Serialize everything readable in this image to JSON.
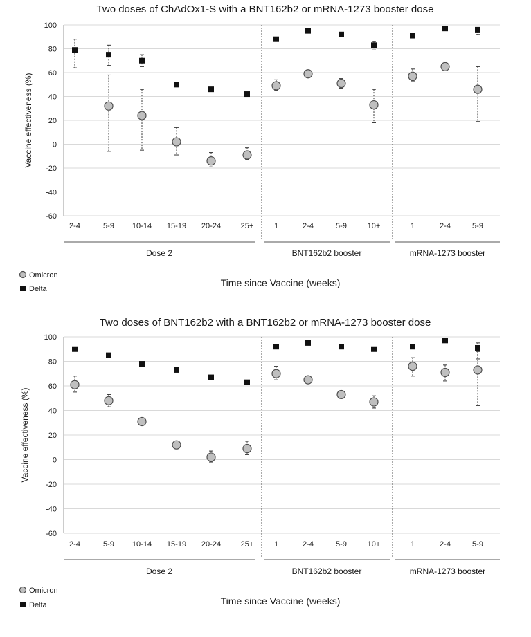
{
  "colors": {
    "omicron_fill": "#bfbfbf",
    "omicron_stroke": "#4d4d4d",
    "delta_fill": "#111111"
  },
  "chart_data": [
    {
      "type": "scatter",
      "title": "Two doses of ChAdOx1-S with a BNT162b2 or mRNA-1273 booster dose",
      "ylabel": "Vaccine effectiveness (%)",
      "xlabel": "Time since Vaccine (weeks)",
      "ylim": [
        -60,
        100
      ],
      "yticks": [
        "-60",
        "-40",
        "-20",
        "0",
        "20",
        "40",
        "60",
        "80",
        "100"
      ],
      "categories": [
        "2-4",
        "5-9",
        "10-14",
        "15-19",
        "20-24",
        "25+",
        "1",
        "2-4",
        "5-9",
        "10+",
        "1",
        "2-4",
        "5-9"
      ],
      "groups": [
        {
          "label": "Dose 2",
          "span": [
            0,
            5
          ]
        },
        {
          "label": "BNT162b2 booster",
          "span": [
            6,
            9
          ]
        },
        {
          "label": "mRNA-1273 booster",
          "span": [
            10,
            12
          ]
        }
      ],
      "series": [
        {
          "name": "Omicron",
          "marker": "circle",
          "values": [
            null,
            32,
            24,
            2,
            -14,
            -9,
            49,
            59,
            51,
            33,
            57,
            65,
            46
          ],
          "ci_low": [
            null,
            -6,
            -5,
            -9,
            -19,
            -13,
            45,
            56,
            47,
            18,
            53,
            62,
            19
          ],
          "ci_high": [
            null,
            58,
            46,
            14,
            -7,
            -3,
            54,
            61,
            55,
            46,
            63,
            69,
            65
          ]
        },
        {
          "name": "Delta",
          "marker": "square",
          "values": [
            79,
            75,
            70,
            50,
            46,
            42,
            88,
            95,
            92,
            83,
            91,
            97,
            96
          ],
          "ci_low": [
            64,
            66,
            65,
            48,
            null,
            null,
            null,
            null,
            null,
            79,
            null,
            null,
            92
          ],
          "ci_high": [
            88,
            83,
            75,
            52,
            null,
            null,
            null,
            null,
            null,
            86,
            null,
            null,
            97
          ]
        }
      ],
      "legend": "bottom-left"
    },
    {
      "type": "scatter",
      "title": "Two doses of BNT162b2 with a BNT162b2 or mRNA-1273 booster dose",
      "ylabel": "Vaccine effectiveness (%)",
      "xlabel": "Time since Vaccine (weeks)",
      "ylim": [
        -60,
        100
      ],
      "yticks": [
        "-60",
        "-40",
        "-20",
        "0",
        "20",
        "40",
        "60",
        "80",
        "100"
      ],
      "categories": [
        "2-4",
        "5-9",
        "10-14",
        "15-19",
        "20-24",
        "25+",
        "1",
        "2-4",
        "5-9",
        "10+",
        "1",
        "2-4",
        "5-9"
      ],
      "groups": [
        {
          "label": "Dose 2",
          "span": [
            0,
            5
          ]
        },
        {
          "label": "BNT162b2 booster",
          "span": [
            6,
            9
          ]
        },
        {
          "label": "mRNA-1273 booster",
          "span": [
            10,
            12
          ]
        }
      ],
      "series": [
        {
          "name": "Omicron",
          "marker": "circle",
          "values": [
            61,
            48,
            31,
            12,
            2,
            9,
            70,
            65,
            53,
            47,
            76,
            71,
            73
          ],
          "ci_low": [
            55,
            43,
            28,
            9,
            -2,
            4,
            65,
            62,
            51,
            42,
            68,
            64,
            44
          ],
          "ci_high": [
            68,
            53,
            34,
            15,
            7,
            15,
            76,
            68,
            56,
            52,
            83,
            77,
            88
          ]
        },
        {
          "name": "Delta",
          "marker": "square",
          "values": [
            90,
            85,
            78,
            73,
            67,
            63,
            92,
            95,
            92,
            90,
            92,
            97,
            91
          ],
          "ci_low": [
            null,
            null,
            null,
            null,
            null,
            null,
            null,
            null,
            null,
            null,
            null,
            null,
            82
          ],
          "ci_high": [
            null,
            null,
            null,
            null,
            null,
            null,
            null,
            null,
            null,
            null,
            null,
            null,
            95
          ]
        }
      ],
      "legend": "bottom-left"
    }
  ]
}
